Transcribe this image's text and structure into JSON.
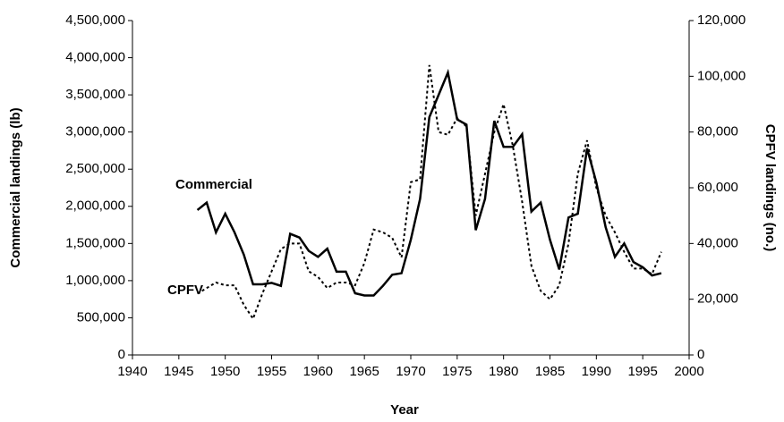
{
  "chart_data": {
    "type": "line",
    "xlabel": "Year",
    "ylabel": "Commercial landings (lb)",
    "y2label": "CPFV landings (no.)",
    "x": [
      1947,
      1948,
      1949,
      1950,
      1951,
      1952,
      1953,
      1954,
      1955,
      1956,
      1957,
      1958,
      1959,
      1960,
      1961,
      1962,
      1963,
      1964,
      1965,
      1966,
      1967,
      1968,
      1969,
      1970,
      1971,
      1972,
      1973,
      1974,
      1975,
      1976,
      1977,
      1978,
      1979,
      1980,
      1981,
      1982,
      1983,
      1984,
      1985,
      1986,
      1987,
      1988,
      1989,
      1990,
      1991,
      1992,
      1993,
      1994,
      1995,
      1996,
      1997
    ],
    "series": [
      {
        "name": "Commercial",
        "color": "#000000",
        "axis": "y",
        "values": [
          1950000,
          2050000,
          1650000,
          1900000,
          1650000,
          1350000,
          950000,
          950000,
          970000,
          930000,
          1630000,
          1580000,
          1400000,
          1320000,
          1430000,
          1120000,
          1120000,
          830000,
          800000,
          800000,
          930000,
          1080000,
          1100000,
          1550000,
          2100000,
          3200000,
          3500000,
          3800000,
          3170000,
          3100000,
          1680000,
          2100000,
          3150000,
          2800000,
          2800000,
          2970000,
          1930000,
          2050000,
          1550000,
          1150000,
          1850000,
          1900000,
          2780000,
          2320000,
          1720000,
          1320000,
          1500000,
          1250000,
          1180000,
          1070000,
          1100000
        ]
      },
      {
        "name": "CPFV",
        "color": "#000000",
        "axis": "y2",
        "values": [
          22000,
          24000,
          26000,
          25000,
          25000,
          18000,
          13000,
          22000,
          30000,
          38000,
          40000,
          40000,
          30000,
          28000,
          24000,
          26000,
          26000,
          25000,
          33000,
          45000,
          44000,
          42000,
          35000,
          62000,
          63000,
          104000,
          80000,
          79000,
          85000,
          82000,
          50000,
          65000,
          80000,
          90000,
          75000,
          55000,
          32000,
          23000,
          20000,
          25000,
          40000,
          65000,
          77000,
          60000,
          50000,
          44000,
          37000,
          31000,
          31000,
          29000,
          37000
        ]
      }
    ],
    "xlim": [
      1940,
      2000
    ],
    "xticks": [
      1940,
      1945,
      1950,
      1955,
      1960,
      1965,
      1970,
      1975,
      1980,
      1985,
      1990,
      1995,
      2000
    ],
    "ylim": [
      0,
      4500000
    ],
    "yticks": [
      0,
      {
        "value": 500000,
        "label": "500,000"
      },
      {
        "value": 1000000,
        "label": "1,000,000"
      },
      {
        "value": 1500000,
        "label": "1,500,000"
      },
      {
        "value": 2000000,
        "label": "2,000,000"
      },
      {
        "value": 2500000,
        "label": "2,500,000"
      },
      {
        "value": 3000000,
        "label": "3,000,000"
      },
      {
        "value": 3500000,
        "label": "3,500,000"
      },
      {
        "value": 4000000,
        "label": "4,000,000"
      },
      {
        "value": 4500000,
        "label": "4,500,000"
      }
    ],
    "y2lim": [
      0,
      120000
    ],
    "y2ticks": [
      0,
      {
        "value": 20000,
        "label": "20,000"
      },
      {
        "value": 40000,
        "label": "40,000"
      },
      {
        "value": 60000,
        "label": "60,000"
      },
      {
        "value": 80000,
        "label": "80,000"
      },
      {
        "value": 100000,
        "label": "100,000"
      },
      {
        "value": 120000,
        "label": "120,000"
      }
    ],
    "grid": false
  }
}
